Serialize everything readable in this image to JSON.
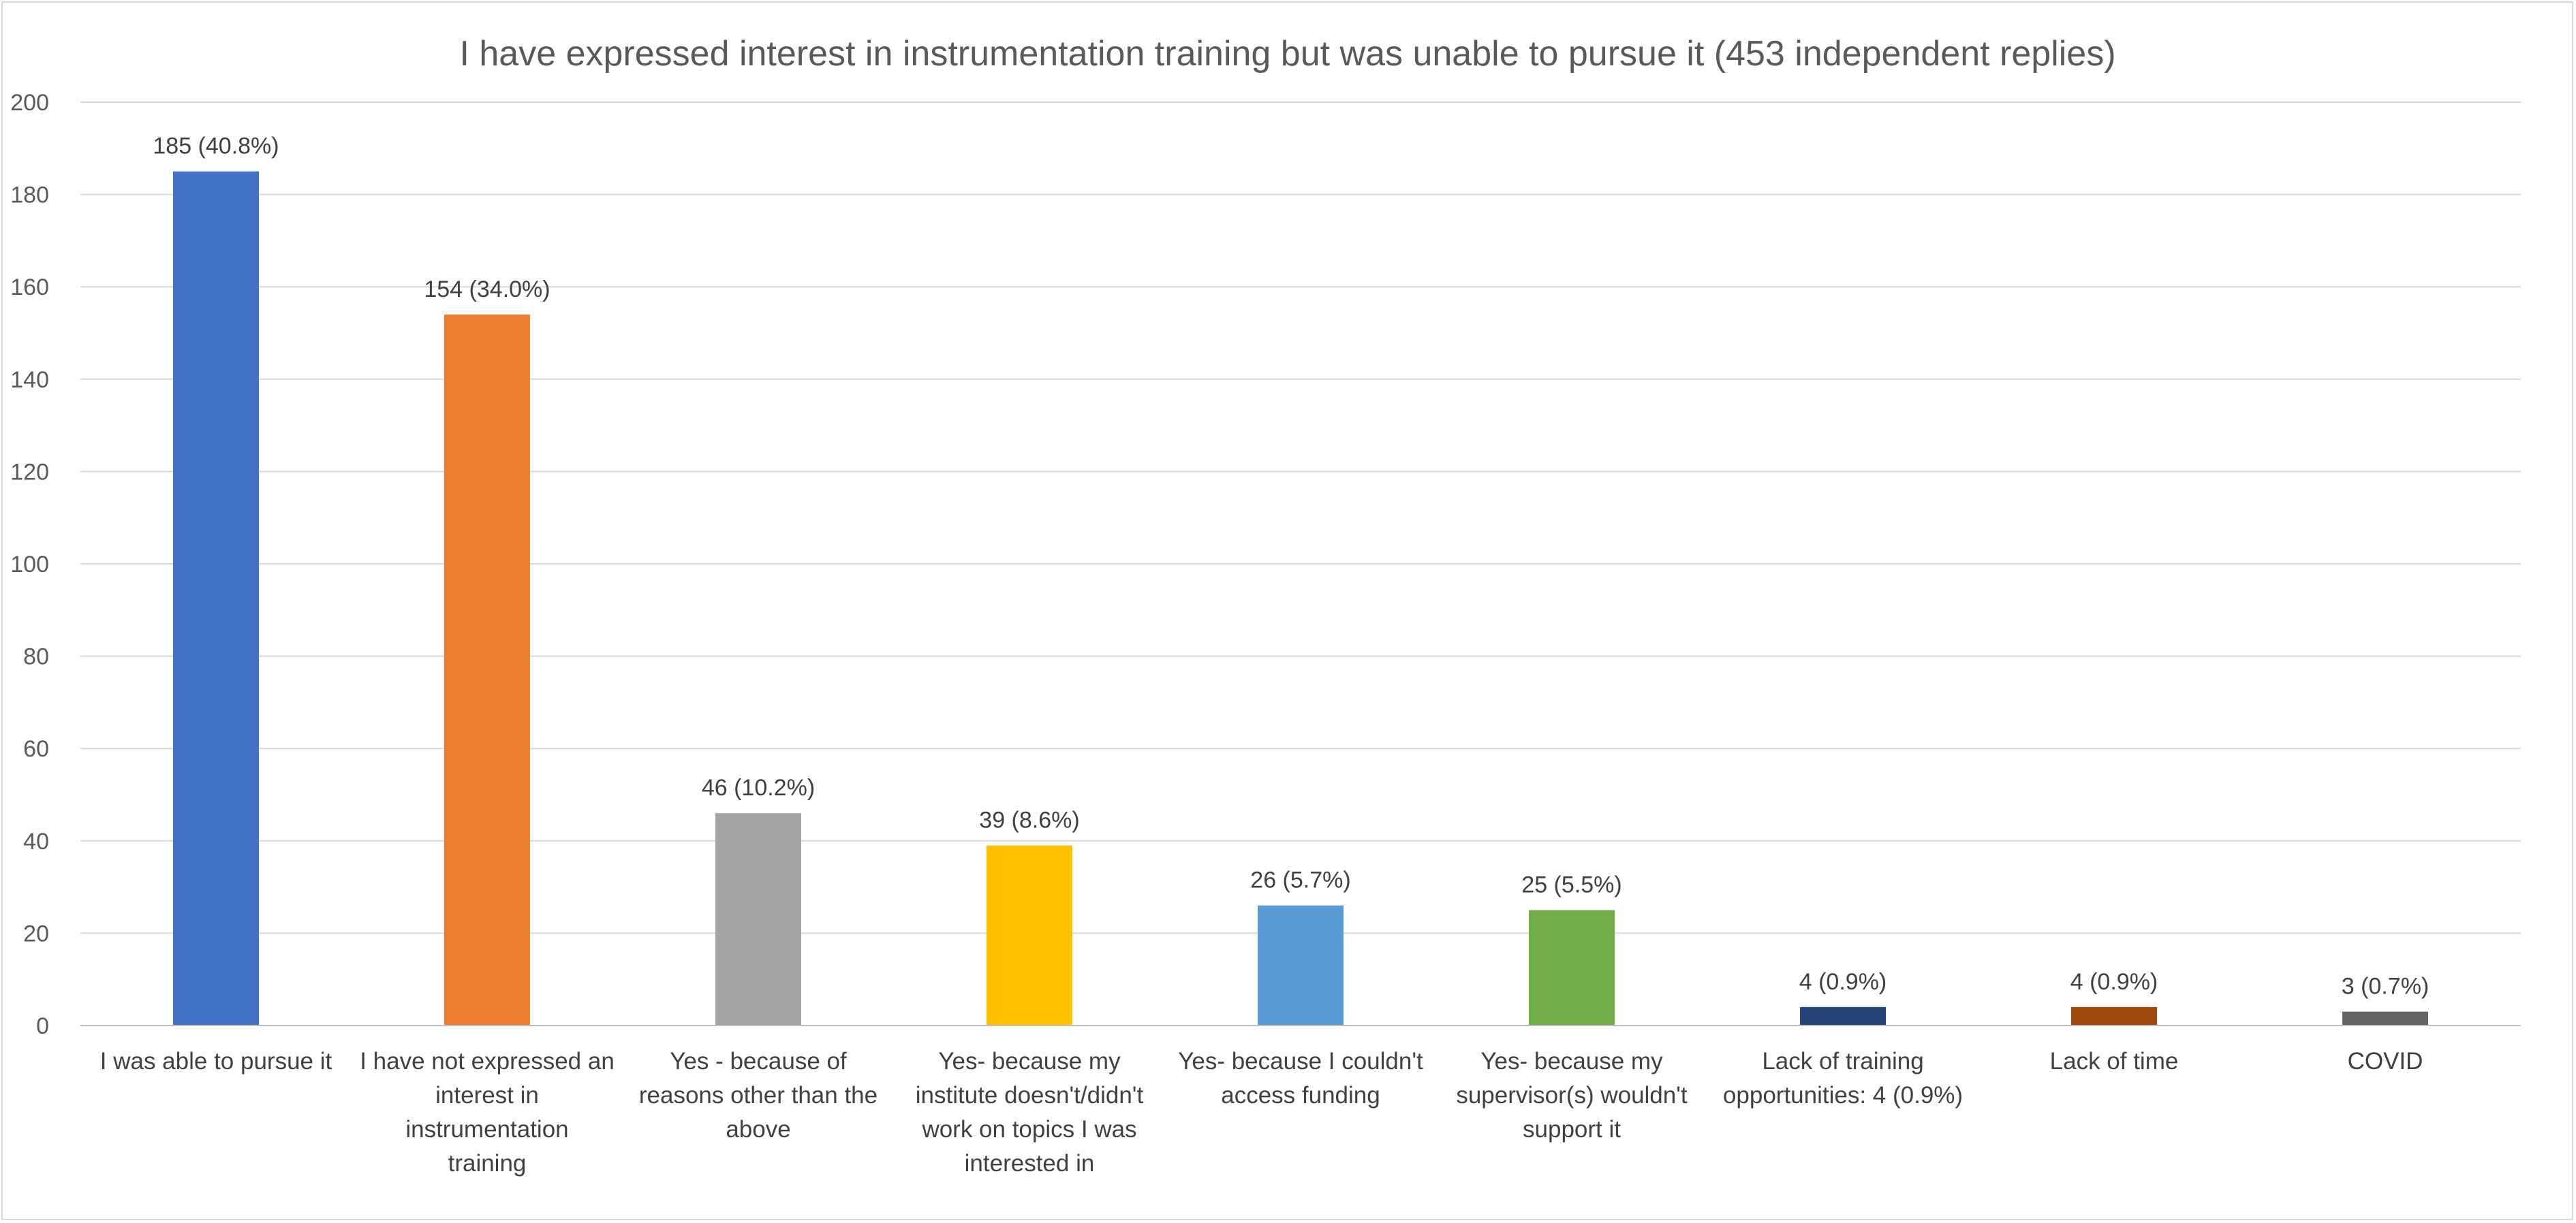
{
  "chart_data": {
    "type": "bar",
    "title": "I have expressed interest in instrumentation training but was unable to pursue it (453 independent replies)",
    "xlabel": "",
    "ylabel": "",
    "ylim": [
      0,
      200
    ],
    "yticks": [
      0,
      20,
      40,
      60,
      80,
      100,
      120,
      140,
      160,
      180,
      200
    ],
    "grid": true,
    "legend": "none",
    "categories": [
      "I was able to pursue it",
      "I have not expressed an interest in instrumentation training",
      "Yes - because of reasons other than the above",
      "Yes- because my institute doesn't/didn't work on topics I was interested in",
      "Yes- because I couldn't access funding",
      "Yes- because my supervisor(s) wouldn't support it",
      "Lack of training opportunities: 4 (0.9%)",
      "Lack of time",
      "COVID"
    ],
    "category_lines": [
      [
        "I was able to pursue it"
      ],
      [
        "I have not expressed an",
        "interest in",
        "instrumentation",
        "training"
      ],
      [
        "Yes - because of",
        "reasons other than the",
        "above"
      ],
      [
        "Yes- because my",
        "institute doesn't/didn't",
        "work on topics I was",
        "interested in"
      ],
      [
        "Yes- because I couldn't",
        "access funding"
      ],
      [
        "Yes- because my",
        "supervisor(s) wouldn't",
        "support it"
      ],
      [
        "Lack of training",
        "opportunities: 4 (0.9%)"
      ],
      [
        "Lack of time"
      ],
      [
        "COVID"
      ]
    ],
    "values": [
      185,
      154,
      46,
      39,
      26,
      25,
      4,
      4,
      3
    ],
    "data_labels": [
      "185 (40.8%)",
      "154 (34.0%)",
      "46 (10.2%)",
      "39 (8.6%)",
      "26 (5.7%)",
      "25 (5.5%)",
      "4 (0.9%)",
      "4 (0.9%)",
      "3 (0.7%)"
    ],
    "colors": [
      "#4472c4",
      "#ed7d31",
      "#a5a5a5",
      "#ffc000",
      "#5b9bd5",
      "#70ad47",
      "#264478",
      "#9e480e",
      "#636363"
    ]
  }
}
